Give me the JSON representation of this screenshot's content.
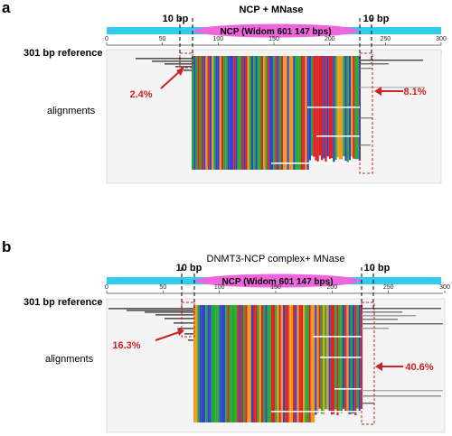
{
  "panels": [
    {
      "letter": "a",
      "title": "NCP + MNase",
      "ncp_label": "NCP (Widom 601 147 bps)",
      "left_flank": "10 bp",
      "right_flank": "10 bp",
      "axis_ticks": [
        "0",
        "50",
        "100",
        "150",
        "200",
        "250",
        "300"
      ],
      "reference_label": "301 bp reference",
      "alignments_label": "alignments",
      "left_percent": "2.4%",
      "right_percent": "8.1%"
    },
    {
      "letter": "b",
      "title": "DNMT3-NCP complex+ MNase",
      "ncp_label": "NCP (Widom 601 147 bps)",
      "left_flank": "10 bp",
      "right_flank": "10 bp",
      "axis_ticks": [
        "0",
        "50",
        "100",
        "150",
        "200",
        "250",
        "300"
      ],
      "reference_label": "301 bp reference",
      "alignments_label": "alignments",
      "left_percent": "16.3%",
      "right_percent": "40.6%"
    }
  ],
  "colors": {
    "track": "#33ccee",
    "ncp": "#ee66dd",
    "annotation": "#cc2222",
    "bases": [
      "#22aa33",
      "#3344cc",
      "#dd2222",
      "#ee9922"
    ]
  }
}
